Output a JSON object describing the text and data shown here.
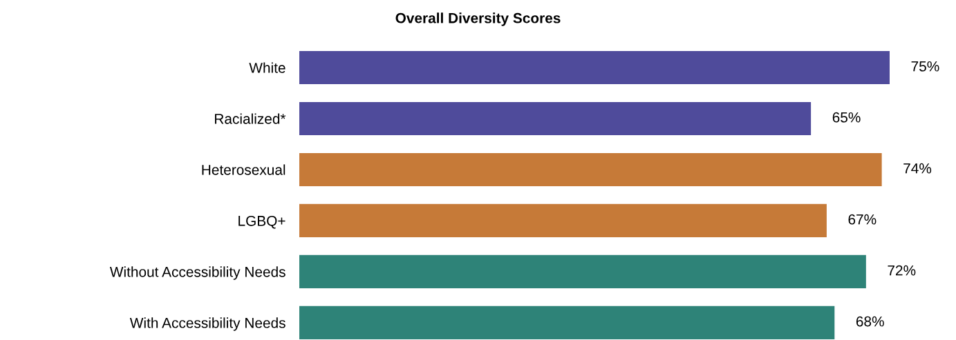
{
  "chart_data": {
    "type": "bar",
    "orientation": "horizontal",
    "title": "Overall Diversity Scores",
    "categories": [
      "White",
      "Racialized*",
      "Heterosexual",
      "LGBQ+",
      "Without Accessibility Needs",
      "With Accessibility Needs"
    ],
    "values": [
      75,
      65,
      74,
      67,
      72,
      68
    ],
    "value_labels": [
      "75%",
      "65%",
      "74%",
      "67%",
      "72%",
      "68%"
    ],
    "colors": [
      "#4f4b9b",
      "#4f4b9b",
      "#c67a38",
      "#c67a38",
      "#2e8378",
      "#2e8378"
    ],
    "grid": false,
    "legend": false
  }
}
